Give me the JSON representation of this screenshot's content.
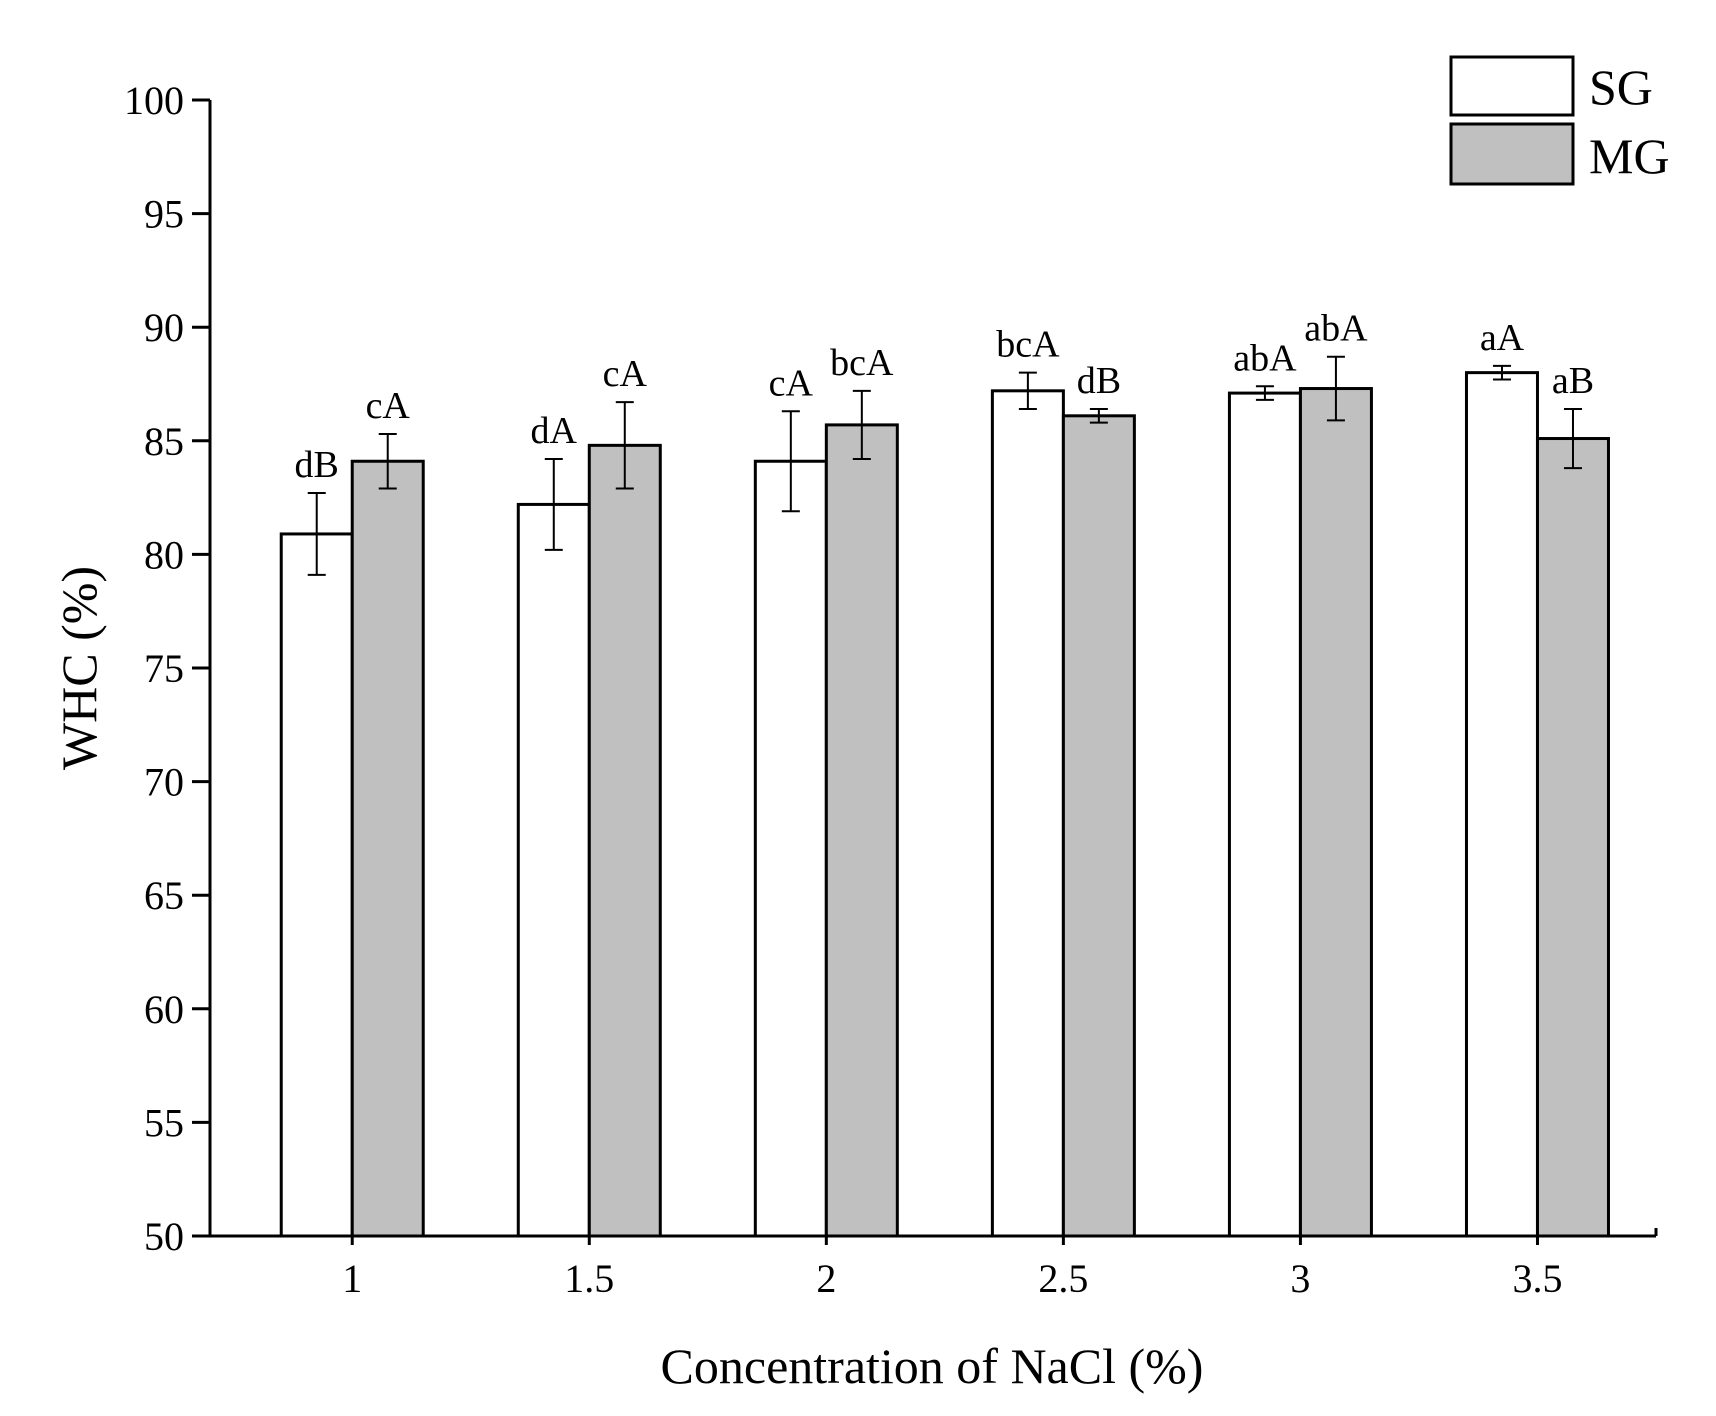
{
  "chart_data": {
    "type": "bar",
    "title": "",
    "xlabel": "Concentration of NaCl (%)",
    "ylabel": "WHC (%)",
    "categories": [
      "1",
      "1.5",
      "2",
      "2.5",
      "3",
      "3.5"
    ],
    "ylim": [
      50,
      100
    ],
    "yticks": [
      50,
      55,
      60,
      65,
      70,
      75,
      80,
      85,
      90,
      95,
      100
    ],
    "ytick_labels": [
      "50",
      "55",
      "60",
      "65",
      "70",
      "75",
      "80",
      "85",
      "90",
      "95",
      "100"
    ],
    "grid": false,
    "legend_position": "top-right",
    "series": [
      {
        "name": "SG",
        "color": "#ffffff",
        "values": [
          80.9,
          82.2,
          84.1,
          87.2,
          87.1,
          88.0
        ],
        "errors": [
          1.8,
          2.0,
          2.2,
          0.8,
          0.3,
          0.3
        ],
        "labels": [
          "dB",
          "dA",
          "cA",
          "bcA",
          "abA",
          "aA"
        ]
      },
      {
        "name": "MG",
        "color": "#c0c0c0",
        "values": [
          84.1,
          84.8,
          85.7,
          86.1,
          87.3,
          85.1
        ],
        "errors": [
          1.2,
          1.9,
          1.5,
          0.3,
          1.4,
          1.3
        ],
        "labels": [
          "cA",
          "cA",
          "bcA",
          "dB",
          "abA",
          "aB"
        ]
      }
    ]
  }
}
